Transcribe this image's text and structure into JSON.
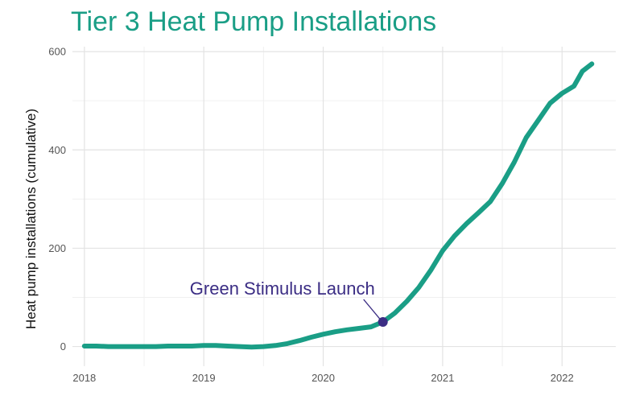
{
  "chart_data": {
    "type": "line",
    "title": "Tier 3 Heat Pump Installations",
    "xlabel": "",
    "ylabel": "Heat pump installations (cumulative)",
    "x_ticks": [
      "2018",
      "2019",
      "2020",
      "2021",
      "2022"
    ],
    "y_ticks": [
      0,
      200,
      400,
      600
    ],
    "xlim": [
      2017.9,
      2022.45
    ],
    "ylim": [
      -40,
      610
    ],
    "grid": true,
    "legend": "none",
    "series": [
      {
        "x": [
          2018.0,
          2018.1,
          2018.2,
          2018.3,
          2018.4,
          2018.5,
          2018.6,
          2018.7,
          2018.8,
          2018.9,
          2019.0,
          2019.1,
          2019.2,
          2019.3,
          2019.4,
          2019.5,
          2019.6,
          2019.7,
          2019.8,
          2019.9,
          2020.0,
          2020.1,
          2020.2,
          2020.3,
          2020.4,
          2020.5,
          2020.6,
          2020.7,
          2020.8,
          2020.9,
          2021.0,
          2021.1,
          2021.2,
          2021.3,
          2021.4,
          2021.5,
          2021.6,
          2021.7,
          2021.8,
          2021.9,
          2022.0,
          2022.1,
          2022.17,
          2022.25
        ],
        "y": [
          1,
          1,
          0,
          0,
          0,
          0,
          0,
          1,
          1,
          1,
          2,
          2,
          1,
          0,
          -1,
          0,
          2,
          6,
          12,
          19,
          25,
          30,
          34,
          37,
          40,
          50,
          68,
          92,
          120,
          155,
          195,
          225,
          250,
          272,
          295,
          332,
          375,
          425,
          460,
          495,
          515,
          530,
          560,
          575
        ],
        "color": "#1a9e86"
      }
    ],
    "annotations": [
      {
        "text": "Green Stimulus Launch",
        "x": 2020.5,
        "y": 50,
        "color": "#3b2d84"
      }
    ]
  }
}
